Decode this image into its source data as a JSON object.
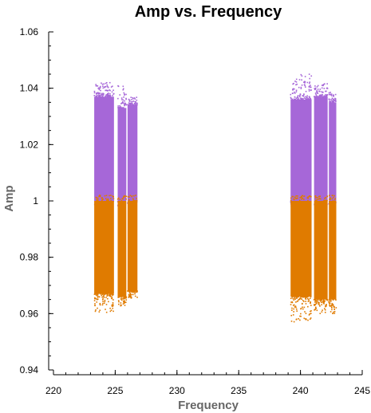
{
  "chart_data": {
    "type": "scatter",
    "title": "Amp vs. Frequency",
    "xlabel": "Frequency",
    "ylabel": "Amp",
    "xlim": [
      220,
      245
    ],
    "ylim": [
      0.94,
      1.06
    ],
    "x_ticks": [
      "220",
      "225",
      "230",
      "235",
      "240",
      "245"
    ],
    "y_ticks": [
      "0.94",
      "0.96",
      "0.98",
      "1",
      "1.02",
      "1.04",
      "1.06"
    ],
    "grid": false,
    "legend": "none",
    "series": [
      {
        "color": "#a667d8",
        "description_range": "upper half (amp above 1)",
        "blocks": [
          {
            "x": [
              223.3,
              224.9
            ],
            "y": [
              1.0,
              1.037
            ],
            "outliers_top": 1.042
          },
          {
            "x": [
              225.2,
              225.9
            ],
            "y": [
              1.0,
              1.033
            ],
            "outliers_top": 1.041
          },
          {
            "x": [
              226.0,
              226.8
            ],
            "y": [
              1.0,
              1.034
            ],
            "outliers_top": 1.037
          },
          {
            "x": [
              239.2,
              240.9
            ],
            "y": [
              1.0,
              1.036
            ],
            "outliers_top": 1.045
          },
          {
            "x": [
              241.1,
              242.2
            ],
            "y": [
              1.0,
              1.037
            ],
            "outliers_top": 1.042
          },
          {
            "x": [
              242.3,
              242.9
            ],
            "y": [
              1.0,
              1.035
            ],
            "outliers_top": 1.039
          }
        ]
      },
      {
        "color": "#e07b00",
        "description_range": "lower half (amp below 1)",
        "blocks": [
          {
            "x": [
              223.3,
              224.9
            ],
            "y": [
              0.967,
              1.0
            ],
            "outliers_bottom": 0.96
          },
          {
            "x": [
              225.2,
              225.9
            ],
            "y": [
              0.966,
              1.0
            ],
            "outliers_bottom": 0.962
          },
          {
            "x": [
              226.0,
              226.8
            ],
            "y": [
              0.968,
              1.0
            ],
            "outliers_bottom": 0.965
          },
          {
            "x": [
              239.2,
              240.9
            ],
            "y": [
              0.966,
              1.0
            ],
            "outliers_bottom": 0.957
          },
          {
            "x": [
              241.1,
              242.2
            ],
            "y": [
              0.965,
              1.0
            ],
            "outliers_bottom": 0.96
          },
          {
            "x": [
              242.3,
              242.9
            ],
            "y": [
              0.965,
              1.0
            ],
            "outliers_bottom": 0.96
          }
        ]
      }
    ]
  }
}
